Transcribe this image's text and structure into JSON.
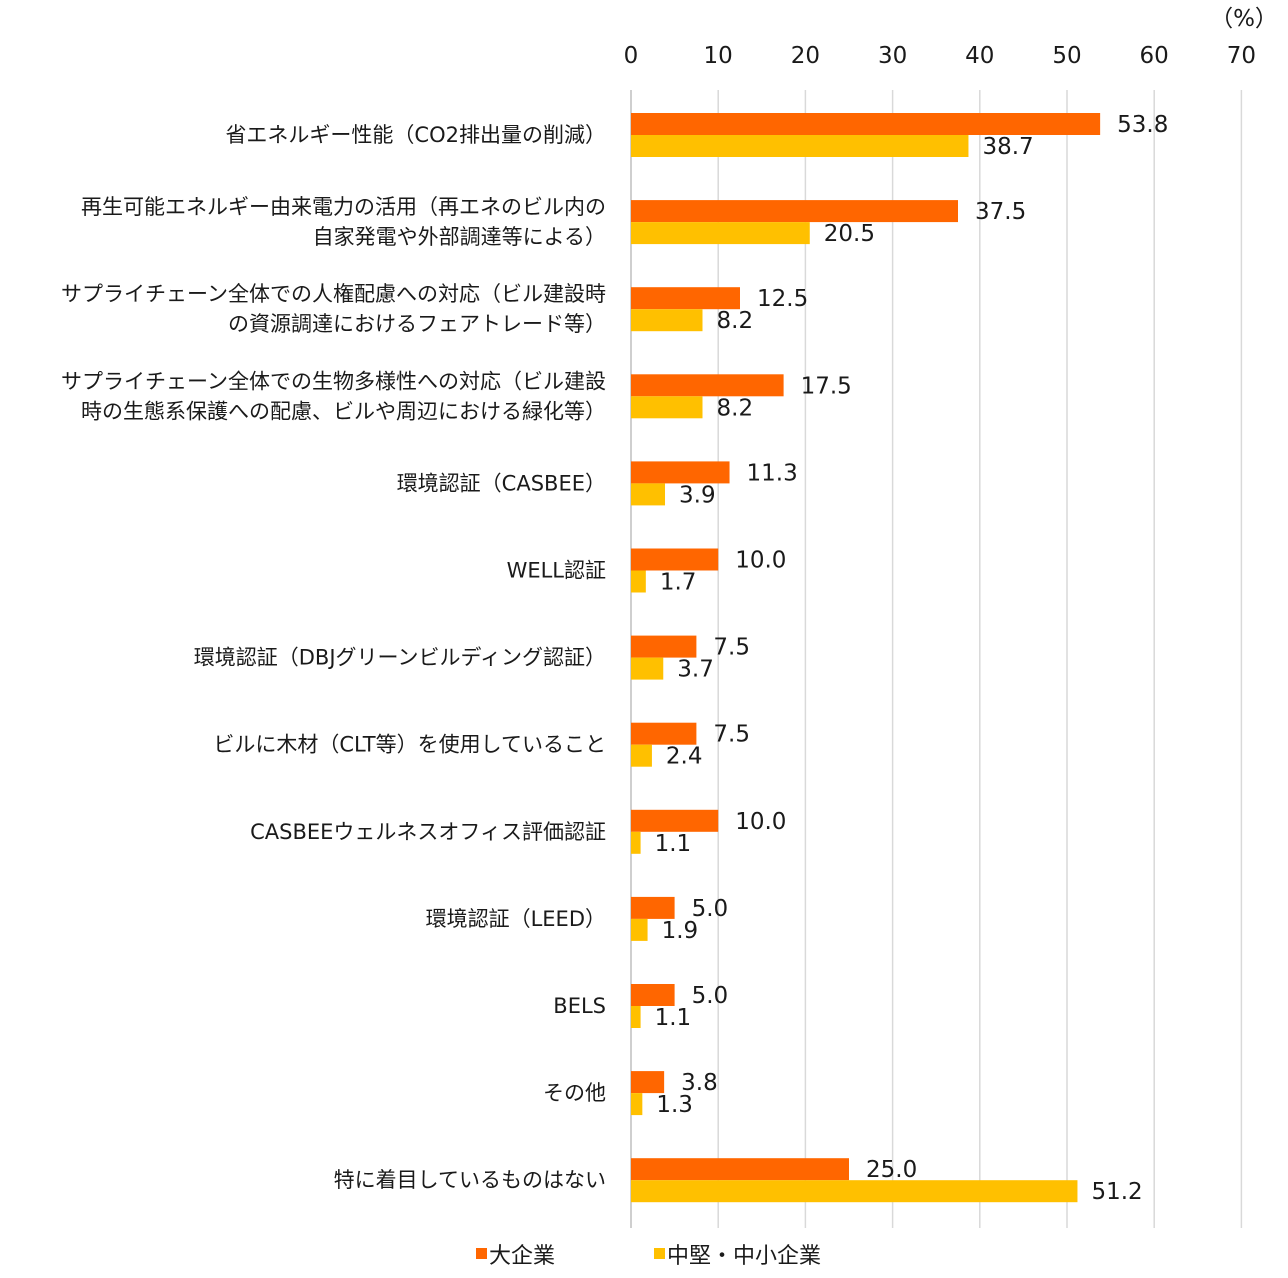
{
  "chart_data": {
    "type": "bar",
    "orientation": "horizontal",
    "unit": "（%）",
    "xlim": [
      0,
      70
    ],
    "xticks": [
      "0",
      "10",
      "20",
      "30",
      "40",
      "50",
      "60",
      "70"
    ],
    "grid": true,
    "legend_position": "bottom",
    "categories": [
      [
        "省エネルギー性能（CO2排出量の削減）"
      ],
      [
        "再生可能エネルギー由来電力の活用（再エネのビル内の",
        "自家発電や外部調達等による）"
      ],
      [
        "サプライチェーン全体での人権配慮への対応（ビル建設時",
        "の資源調達におけるフェアトレード等）"
      ],
      [
        "サプライチェーン全体での生物多様性への対応（ビル建設",
        "時の生態系保護への配慮、ビルや周辺における緑化等）"
      ],
      [
        "環境認証（CASBEE）"
      ],
      [
        "WELL認証"
      ],
      [
        "環境認証（DBJグリーンビルディング認証）"
      ],
      [
        "ビルに木材（CLT等）を使用していること"
      ],
      [
        "CASBEEウェルネスオフィス評価認証"
      ],
      [
        "環境認証（LEED）"
      ],
      [
        "BELS"
      ],
      [
        "その他"
      ],
      [
        "特に着目しているものはない"
      ]
    ],
    "series": [
      {
        "name": "大企業",
        "color": "#FF6600",
        "values": [
          53.8,
          37.5,
          12.5,
          17.5,
          11.3,
          10.0,
          7.5,
          7.5,
          10.0,
          5.0,
          5.0,
          3.8,
          25.0
        ],
        "labels": [
          "53.8",
          "37.5",
          "12.5",
          "17.5",
          "11.3",
          "10.0",
          "7.5",
          "7.5",
          "10.0",
          "5.0",
          "5.0",
          "3.8",
          "25.0"
        ]
      },
      {
        "name": "中堅・中小企業",
        "color": "#FFC000",
        "values": [
          38.7,
          20.5,
          8.2,
          8.2,
          3.9,
          1.7,
          3.7,
          2.4,
          1.1,
          1.9,
          1.1,
          1.3,
          51.2
        ],
        "labels": [
          "38.7",
          "20.5",
          "8.2",
          "8.2",
          "3.9",
          "1.7",
          "3.7",
          "2.4",
          "1.1",
          "1.9",
          "1.1",
          "1.3",
          "51.2"
        ]
      }
    ]
  }
}
